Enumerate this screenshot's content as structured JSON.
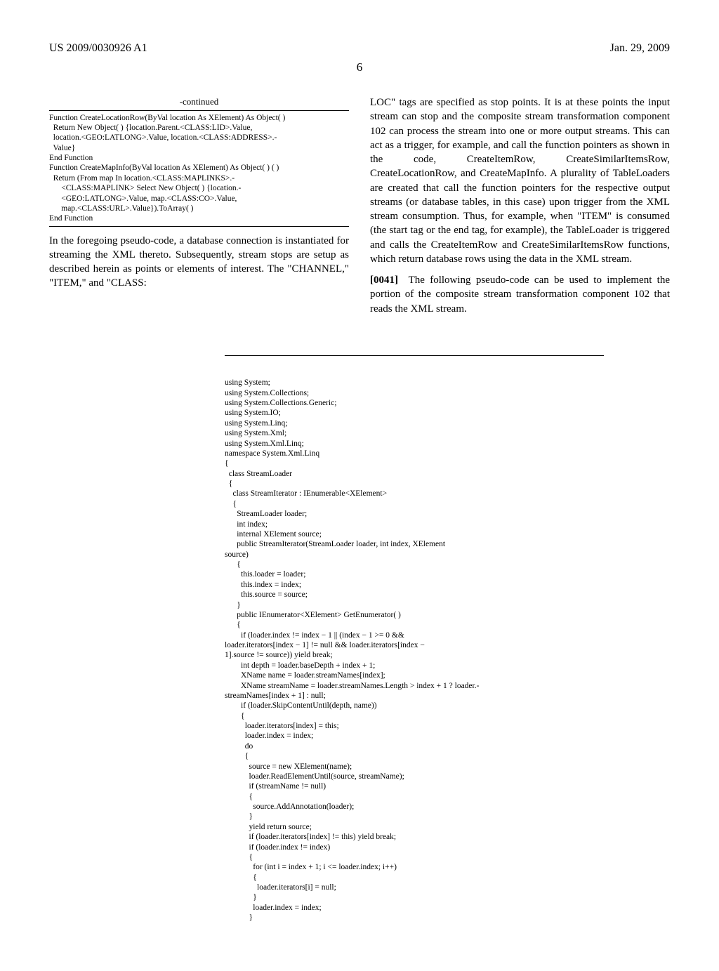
{
  "header": {
    "pub_number": "US 2009/0030926 A1",
    "pub_date": "Jan. 29, 2009"
  },
  "page_number": "6",
  "left_col": {
    "continued_label": "-continued",
    "code": "Function CreateLocationRow(ByVal location As XElement) As Object( )\n  Return New Object( ) {location.Parent.<CLASS:LID>.Value,\n  location.<GEO:LATLONG>.Value, location.<CLASS:ADDRESS>.-\n  Value}\nEnd Function\nFunction CreateMapInfo(ByVal location As XElement) As Object( ) ( )\n  Return (From map In location.<CLASS:MAPLINKS>.-\n      <CLASS:MAPLINK> Select New Object( ) {location.-\n      <GEO:LATLONG>.Value, map.<CLASS:CO>.Value,\n      map.<CLASS:URL>.Value}).ToArray( )\nEnd Function",
    "para": "In the foregoing pseudo-code, a database connection is instantiated for streaming the XML thereto. Subsequently, stream stops are setup as described herein as points or elements of interest. The \"CHANNEL,\" \"ITEM,\" and \"CLASS:"
  },
  "right_col": {
    "para1": "LOC\" tags are specified as stop points. It is at these points the input stream can stop and the composite stream transformation component 102 can process the stream into one or more output streams. This can act as a trigger, for example, and call the function pointers as shown in the code, CreateItemRow, CreateSimilarItemsRow, CreateLocationRow, and CreateMapInfo. A plurality of TableLoaders are created that call the function pointers for the respective output streams (or database tables, in this case) upon trigger from the XML stream consumption. Thus, for example, when \"ITEM\" is consumed (the start tag or the end tag, for example), the TableLoader is triggered and calls the CreateItemRow and CreateSimilarItemsRow functions, which return database rows using the data in the XML stream.",
    "para2_num": "[0041]",
    "para2": "The following pseudo-code can be used to implement the portion of the composite stream transformation component 102 that reads the XML stream."
  },
  "main_code": "using System;\nusing System.Collections;\nusing System.Collections.Generic;\nusing System.IO;\nusing System.Linq;\nusing System.Xml;\nusing System.Xml.Linq;\nnamespace System.Xml.Linq\n{\n  class StreamLoader\n  {\n    class StreamIterator : IEnumerable<XElement>\n    {\n      StreamLoader loader;\n      int index;\n      internal XElement source;\n      public StreamIterator(StreamLoader loader, int index, XElement\nsource)\n      {\n        this.loader = loader;\n        this.index = index;\n        this.source = source;\n      }\n      public IEnumerator<XElement> GetEnumerator( )\n      {\n        if (loader.index != index − 1 || (index − 1 >= 0 &&\nloader.iterators[index − 1] != null && loader.iterators[index −\n1].source != source)) yield break;\n        int depth = loader.baseDepth + index + 1;\n        XName name = loader.streamNames[index];\n        XName streamName = loader.streamNames.Length > index + 1 ? loader.-\nstreamNames[index + 1] : null;\n        if (loader.SkipContentUntil(depth, name))\n        {\n          loader.iterators[index] = this;\n          loader.index = index;\n          do\n          {\n            source = new XElement(name);\n            loader.ReadElementUntil(source, streamName);\n            if (streamName != null)\n            {\n              source.AddAnnotation(loader);\n            }\n            yield return source;\n            if (loader.iterators[index] != this) yield break;\n            if (loader.index != index)\n            {\n              for (int i = index + 1; i <= loader.index; i++)\n              {\n                loader.iterators[i] = null;\n              }\n              loader.index = index;\n            }"
}
